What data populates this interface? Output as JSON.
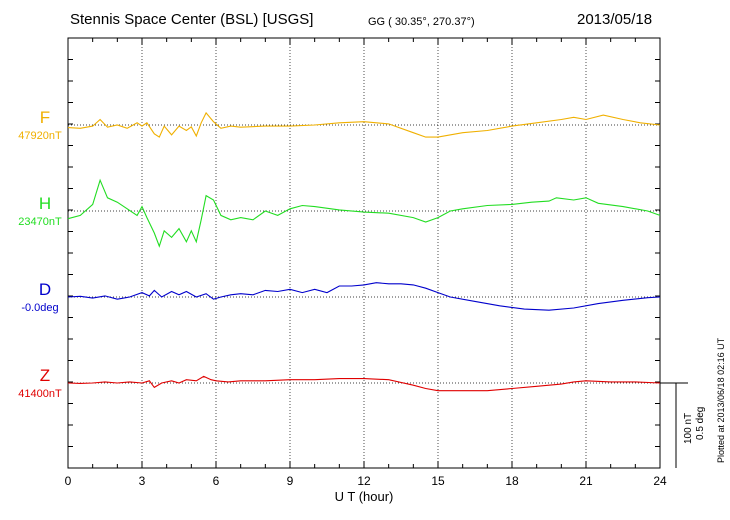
{
  "header": {
    "title": "Stennis Space Center (BSL)  [USGS]",
    "coords": "GG ( 30.35°, 270.37°)",
    "date": "2013/05/18"
  },
  "plotted_note": "Plotted at 2013/06/18 02:16 UT",
  "scale": {
    "nt": "100 nT",
    "deg": "0.5 deg"
  },
  "chart_data": {
    "type": "line",
    "xlabel": "U T (hour)",
    "xlim": [
      0,
      24
    ],
    "xticks": [
      0,
      3,
      6,
      9,
      12,
      15,
      18,
      21,
      24
    ],
    "xtick_labels": [
      "0",
      "3",
      "6",
      "9",
      "12",
      "15",
      "18",
      "21",
      "24"
    ],
    "grid": true,
    "series": [
      {
        "name": "F",
        "baseline_label": "47920nT",
        "color": "#f0b000",
        "baseline_offset": 0,
        "points": [
          [
            0,
            0.12
          ],
          [
            0.5,
            0.15
          ],
          [
            1.0,
            0.05
          ],
          [
            1.3,
            -0.25
          ],
          [
            1.6,
            0.1
          ],
          [
            2.0,
            0.0
          ],
          [
            2.4,
            0.15
          ],
          [
            2.8,
            -0.1
          ],
          [
            3.0,
            0.05
          ],
          [
            3.2,
            -0.1
          ],
          [
            3.5,
            0.4
          ],
          [
            3.7,
            0.55
          ],
          [
            3.9,
            0.05
          ],
          [
            4.2,
            0.45
          ],
          [
            4.5,
            0.05
          ],
          [
            4.8,
            0.25
          ],
          [
            5.0,
            0.08
          ],
          [
            5.2,
            0.5
          ],
          [
            5.4,
            -0.1
          ],
          [
            5.6,
            -0.55
          ],
          [
            5.9,
            -0.15
          ],
          [
            6.2,
            0.15
          ],
          [
            6.6,
            0.05
          ],
          [
            7.0,
            0.1
          ],
          [
            8.0,
            0.05
          ],
          [
            9.0,
            0.05
          ],
          [
            10.0,
            0.0
          ],
          [
            11.0,
            -0.1
          ],
          [
            12.0,
            -0.15
          ],
          [
            13.0,
            -0.05
          ],
          [
            14.0,
            0.35
          ],
          [
            14.5,
            0.55
          ],
          [
            15.0,
            0.55
          ],
          [
            16.0,
            0.35
          ],
          [
            17.0,
            0.25
          ],
          [
            18.0,
            0.05
          ],
          [
            19.0,
            -0.1
          ],
          [
            20.0,
            -0.25
          ],
          [
            20.5,
            -0.35
          ],
          [
            21.0,
            -0.25
          ],
          [
            21.7,
            -0.45
          ],
          [
            22.5,
            -0.25
          ],
          [
            23.2,
            -0.1
          ],
          [
            24,
            0.0
          ]
        ]
      },
      {
        "name": "H",
        "baseline_label": "23470nT",
        "color": "#22dd22",
        "baseline_offset": 0,
        "points": [
          [
            0,
            0.35
          ],
          [
            0.5,
            0.2
          ],
          [
            1.0,
            -0.3
          ],
          [
            1.3,
            -1.4
          ],
          [
            1.6,
            -0.6
          ],
          [
            2.0,
            -0.4
          ],
          [
            2.4,
            -0.1
          ],
          [
            2.8,
            0.2
          ],
          [
            3.0,
            -0.2
          ],
          [
            3.2,
            0.3
          ],
          [
            3.5,
            1.0
          ],
          [
            3.7,
            1.6
          ],
          [
            3.9,
            0.9
          ],
          [
            4.2,
            1.2
          ],
          [
            4.5,
            0.8
          ],
          [
            4.8,
            1.4
          ],
          [
            5.0,
            0.9
          ],
          [
            5.2,
            1.4
          ],
          [
            5.4,
            0.4
          ],
          [
            5.6,
            -0.7
          ],
          [
            5.9,
            -0.5
          ],
          [
            6.2,
            0.2
          ],
          [
            6.6,
            0.4
          ],
          [
            7.0,
            0.3
          ],
          [
            7.5,
            0.4
          ],
          [
            8.0,
            0.0
          ],
          [
            8.5,
            0.2
          ],
          [
            9.0,
            -0.1
          ],
          [
            9.5,
            -0.25
          ],
          [
            10.0,
            -0.2
          ],
          [
            11.0,
            -0.05
          ],
          [
            12.0,
            0.05
          ],
          [
            13.0,
            0.1
          ],
          [
            14.0,
            0.3
          ],
          [
            14.5,
            0.5
          ],
          [
            15.0,
            0.3
          ],
          [
            15.5,
            0.0
          ],
          [
            16.0,
            -0.1
          ],
          [
            17.0,
            -0.25
          ],
          [
            18.0,
            -0.3
          ],
          [
            18.8,
            -0.4
          ],
          [
            19.5,
            -0.45
          ],
          [
            19.8,
            -0.6
          ],
          [
            20.5,
            -0.5
          ],
          [
            21.0,
            -0.6
          ],
          [
            21.5,
            -0.35
          ],
          [
            22.5,
            -0.2
          ],
          [
            23.5,
            0.0
          ],
          [
            24,
            0.2
          ]
        ]
      },
      {
        "name": "D",
        "baseline_label": "-0.0deg",
        "color": "#0000cc",
        "baseline_offset": 0,
        "points": [
          [
            0,
            0.0
          ],
          [
            0.5,
            -0.03
          ],
          [
            1.0,
            0.05
          ],
          [
            1.5,
            -0.05
          ],
          [
            2.0,
            0.1
          ],
          [
            2.5,
            0.0
          ],
          [
            3.0,
            -0.2
          ],
          [
            3.3,
            -0.05
          ],
          [
            3.5,
            -0.3
          ],
          [
            3.8,
            0.0
          ],
          [
            4.2,
            -0.25
          ],
          [
            4.5,
            -0.1
          ],
          [
            4.8,
            -0.25
          ],
          [
            5.2,
            0.0
          ],
          [
            5.6,
            -0.15
          ],
          [
            5.9,
            0.1
          ],
          [
            6.2,
            0.0
          ],
          [
            6.6,
            -0.1
          ],
          [
            7.0,
            -0.15
          ],
          [
            7.5,
            -0.1
          ],
          [
            8.0,
            -0.3
          ],
          [
            8.5,
            -0.25
          ],
          [
            9.0,
            -0.35
          ],
          [
            9.5,
            -0.2
          ],
          [
            10.0,
            -0.35
          ],
          [
            10.5,
            -0.2
          ],
          [
            11.0,
            -0.5
          ],
          [
            11.5,
            -0.5
          ],
          [
            12.0,
            -0.55
          ],
          [
            12.5,
            -0.65
          ],
          [
            13.0,
            -0.6
          ],
          [
            13.5,
            -0.6
          ],
          [
            14.0,
            -0.55
          ],
          [
            14.5,
            -0.4
          ],
          [
            15.0,
            -0.2
          ],
          [
            15.5,
            0.0
          ],
          [
            16.5,
            0.2
          ],
          [
            17.5,
            0.4
          ],
          [
            18.5,
            0.55
          ],
          [
            19.5,
            0.6
          ],
          [
            20.5,
            0.5
          ],
          [
            21.5,
            0.3
          ],
          [
            22.5,
            0.15
          ],
          [
            23.5,
            0.03
          ],
          [
            24,
            0.0
          ]
        ]
      },
      {
        "name": "Z",
        "baseline_label": "41400nT",
        "color": "#e00000",
        "baseline_offset": 0,
        "points": [
          [
            0,
            0.0
          ],
          [
            0.5,
            0.02
          ],
          [
            1.0,
            0.0
          ],
          [
            1.5,
            -0.05
          ],
          [
            2.0,
            0.0
          ],
          [
            2.5,
            -0.05
          ],
          [
            3.0,
            0.0
          ],
          [
            3.3,
            -0.1
          ],
          [
            3.5,
            0.2
          ],
          [
            3.8,
            0.0
          ],
          [
            4.2,
            -0.1
          ],
          [
            4.5,
            0.0
          ],
          [
            4.8,
            -0.15
          ],
          [
            5.2,
            -0.1
          ],
          [
            5.5,
            -0.3
          ],
          [
            5.8,
            -0.15
          ],
          [
            6.0,
            -0.1
          ],
          [
            6.5,
            -0.05
          ],
          [
            7.0,
            -0.1
          ],
          [
            8.0,
            -0.1
          ],
          [
            9.0,
            -0.15
          ],
          [
            10.0,
            -0.15
          ],
          [
            11.0,
            -0.2
          ],
          [
            12.0,
            -0.2
          ],
          [
            13.0,
            -0.15
          ],
          [
            14.0,
            0.1
          ],
          [
            14.5,
            0.25
          ],
          [
            15.0,
            0.35
          ],
          [
            16.0,
            0.35
          ],
          [
            17.0,
            0.35
          ],
          [
            18.0,
            0.25
          ],
          [
            19.0,
            0.15
          ],
          [
            20.0,
            0.05
          ],
          [
            20.5,
            -0.05
          ],
          [
            21.0,
            -0.1
          ],
          [
            22.0,
            -0.05
          ],
          [
            23.0,
            -0.05
          ],
          [
            24,
            0.0
          ]
        ]
      }
    ]
  }
}
